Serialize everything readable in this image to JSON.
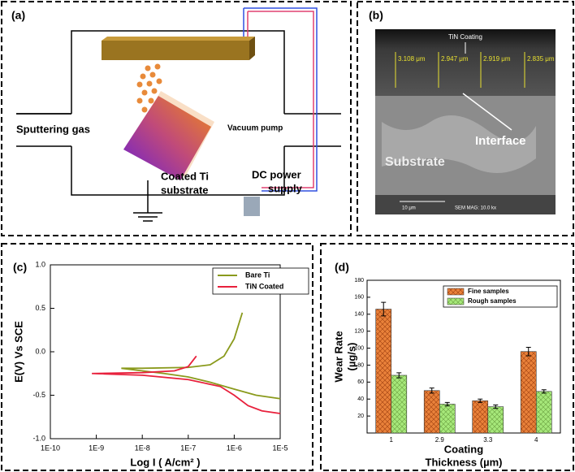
{
  "diagram": {
    "label": "(a)",
    "gas": "Sputtering gas",
    "pump": "Vacuum pump",
    "substrate": [
      "Coated Ti",
      "substrate"
    ],
    "power": [
      "DC power",
      "supply"
    ]
  },
  "image": {
    "label": "(b)",
    "coating": "TiN Coating",
    "thickness": [
      "3.108 μm",
      "2.947 μm",
      "2.919 μm",
      "2.835 μm"
    ],
    "interface": "Interface",
    "substrate": "Substrate",
    "scale": "10 μm",
    "mag": "SEM MAG: 10.0 kx"
  },
  "chart_data": [
    {
      "type": "line",
      "label": "(c)",
      "ylabel": "E(V) Vs SCE",
      "xlabel": "Log I ( A/cm² )",
      "xscale": "log",
      "xlim": [
        1e-10,
        1e-05
      ],
      "xticks": [
        {
          "value": 1e-10,
          "label": "1E-10"
        },
        {
          "value": 1e-09,
          "label": "1E-9"
        },
        {
          "value": 1e-08,
          "label": "1E-8"
        },
        {
          "value": 1e-07,
          "label": "1E-7"
        },
        {
          "value": 1e-06,
          "label": "1E-6"
        },
        {
          "value": 1e-05,
          "label": "1E-5"
        }
      ],
      "ylim": [
        -1,
        1
      ],
      "yticks": [
        {
          "value": -1,
          "label": "-1.0"
        },
        -0.5,
        {
          "value": 0,
          "label": "0.0"
        },
        0.5,
        {
          "value": 1,
          "label": "1.0"
        }
      ],
      "legend": "upper right",
      "series": [
        {
          "name": "Bare Ti",
          "color": "#8a9a1c",
          "x": [
            1.5e-06,
            1e-06,
            6e-07,
            3e-07,
            1e-07,
            1e-08,
            3.5e-09,
            1e-08,
            3e-08,
            1e-07,
            3e-07,
            1e-06,
            3e-06,
            1e-05
          ],
          "values": [
            0.45,
            0.15,
            -0.05,
            -0.15,
            -0.18,
            -0.19,
            -0.19,
            -0.22,
            -0.25,
            -0.29,
            -0.35,
            -0.43,
            -0.5,
            -0.54
          ]
        },
        {
          "name": "TiN Coated",
          "color": "#e8203c",
          "x": [
            1.5e-07,
            1e-07,
            5e-08,
            1e-08,
            8e-10,
            1e-08,
            1e-07,
            5e-07,
            1e-06,
            2e-06,
            4e-06,
            1e-05
          ],
          "values": [
            -0.05,
            -0.17,
            -0.22,
            -0.24,
            -0.25,
            -0.27,
            -0.32,
            -0.4,
            -0.5,
            -0.62,
            -0.68,
            -0.71
          ]
        }
      ]
    },
    {
      "type": "bar",
      "label": "(d)",
      "ylabel": [
        "Wear Rate",
        "(µg/s)"
      ],
      "xlabel": [
        "Coating",
        "Thickness (µm)"
      ],
      "categories": [
        "1",
        "2.9",
        "3.3",
        "4"
      ],
      "ylim": [
        0,
        180
      ],
      "yticks": [
        20,
        40,
        60,
        80,
        100,
        120,
        140,
        160,
        180
      ],
      "legend": "upper right",
      "series": [
        {
          "name": "Fine samples",
          "color": "#e9813a",
          "values": [
            146,
            50,
            38,
            96
          ],
          "errors": [
            8,
            3,
            2,
            5
          ]
        },
        {
          "name": "Rough samples",
          "color": "#a6e87a",
          "values": [
            68,
            34,
            31,
            49
          ],
          "errors": [
            3,
            2,
            2,
            2
          ]
        }
      ]
    }
  ]
}
